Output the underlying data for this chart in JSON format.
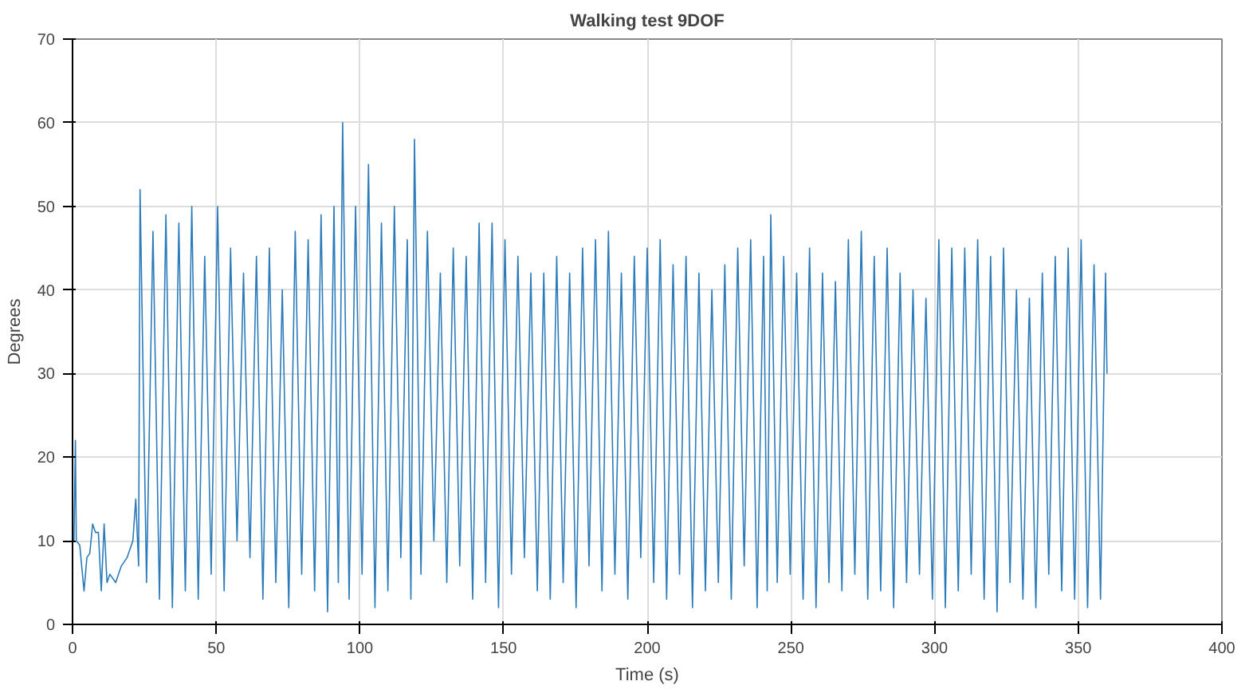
{
  "chart_data": {
    "type": "line",
    "title": "Walking test 9DOF",
    "xlabel": "Time (s)",
    "ylabel": "Degrees",
    "xlim": [
      0,
      400
    ],
    "ylim": [
      0,
      70
    ],
    "xticks": [
      0,
      50,
      100,
      150,
      200,
      250,
      300,
      350,
      400
    ],
    "yticks": [
      0,
      10,
      20,
      30,
      40,
      50,
      60,
      70
    ],
    "grid": true,
    "series": [
      {
        "color": "#2b7bba",
        "x": [
          0,
          0.5,
          1,
          1.3,
          2.5,
          4,
          5,
          6,
          7,
          8,
          9,
          10,
          11,
          12,
          13,
          15,
          17,
          19,
          21,
          22,
          23,
          23.5,
          25.75,
          28,
          30.25,
          32.5,
          34.75,
          37,
          39.25,
          41.5,
          43.75,
          46,
          48.25,
          50.5,
          52.75,
          55,
          57.25,
          59.5,
          61.75,
          64,
          66.25,
          68.5,
          70.75,
          73,
          75.25,
          77.5,
          79.75,
          82,
          84.25,
          86.5,
          88.75,
          91,
          92.5,
          94,
          96.25,
          98.5,
          100.75,
          103,
          105.25,
          107.5,
          109.75,
          112,
          114.25,
          116.5,
          117.75,
          119,
          121.25,
          123.5,
          125.75,
          128,
          130.25,
          132.5,
          134.75,
          137,
          139.25,
          141.5,
          143.75,
          146,
          148.25,
          150.5,
          152.75,
          155,
          157.25,
          159.5,
          161.75,
          164,
          166.25,
          168.5,
          170.75,
          173,
          175.25,
          177.5,
          179.75,
          182,
          184.25,
          186.5,
          188.75,
          191,
          193.25,
          195.5,
          197.75,
          200,
          202.25,
          204.5,
          206.75,
          209,
          211.25,
          213.5,
          215.75,
          218,
          220.25,
          222.5,
          224.75,
          227,
          229.25,
          231.5,
          233.75,
          236,
          238.25,
          240.5,
          241.75,
          243,
          245.25,
          247.5,
          249.75,
          252,
          254.25,
          256.5,
          258.75,
          261,
          263.25,
          265.5,
          267.75,
          270,
          272.25,
          274.5,
          276.75,
          279,
          281.25,
          283.5,
          285.75,
          288,
          290.25,
          292.5,
          294.75,
          297,
          299.25,
          301.5,
          303.75,
          306,
          308.25,
          310.5,
          312.75,
          315,
          317.25,
          319.5,
          321.75,
          324,
          326.25,
          328.5,
          330.75,
          333,
          335.25,
          337.5,
          339.75,
          342,
          344.25,
          346.5,
          348.75,
          351,
          353.25,
          355.5,
          357.75,
          359.5,
          360
        ],
        "values": [
          10,
          10,
          22,
          10,
          9.5,
          4,
          8,
          8.5,
          12,
          11,
          11,
          4,
          12,
          5,
          6,
          5,
          7,
          8,
          10,
          15,
          7,
          52,
          5,
          47,
          3,
          49,
          2,
          48,
          4,
          50,
          3,
          44,
          6,
          50,
          4,
          45,
          10,
          42,
          8,
          44,
          3,
          45,
          5,
          40,
          2,
          47,
          6,
          46,
          4,
          49,
          1.5,
          50,
          5,
          60,
          3,
          50,
          6,
          55,
          2,
          48,
          4,
          50,
          8,
          46,
          3,
          58,
          6,
          47,
          10,
          42,
          5,
          45,
          7,
          44,
          3,
          48,
          5,
          48,
          2,
          46,
          6,
          44,
          8,
          42,
          4,
          42,
          3,
          44,
          5,
          42,
          2,
          45,
          7,
          46,
          4,
          47,
          6,
          42,
          3,
          44,
          8,
          45,
          5,
          46,
          3,
          43,
          6,
          44,
          2,
          42,
          4,
          40,
          5,
          43,
          3,
          45,
          7,
          46,
          2,
          44,
          4,
          49,
          5,
          44,
          6,
          42,
          3,
          45,
          2,
          42,
          5,
          41,
          4,
          46,
          6,
          47,
          3,
          44,
          4,
          45,
          2,
          42,
          5,
          40,
          6,
          39,
          3,
          46,
          2,
          45,
          4,
          45,
          6,
          46,
          3,
          44,
          1.5,
          45,
          5,
          40,
          3,
          39,
          2,
          42,
          6,
          44,
          4,
          45,
          3,
          46,
          2,
          43,
          3,
          42,
          30
        ]
      }
    ]
  }
}
